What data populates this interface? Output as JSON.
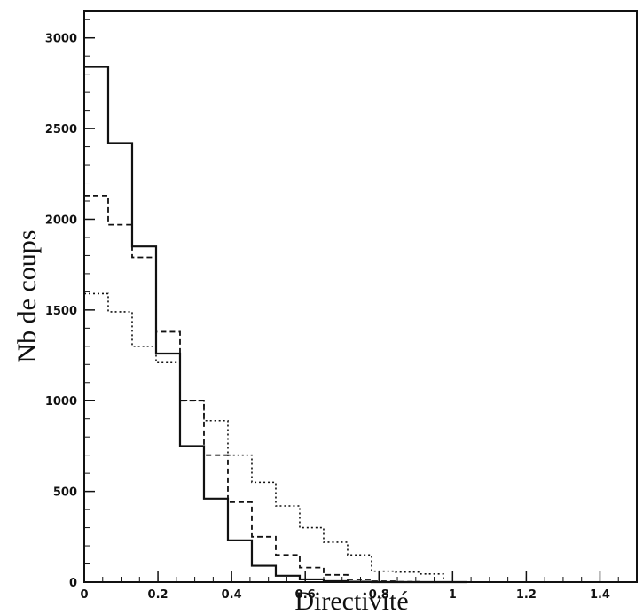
{
  "chart_data": {
    "type": "histogram",
    "xlabel": "Directivité",
    "ylabel": "Nb de coups",
    "xlim": [
      0,
      1.5
    ],
    "ylim": [
      0,
      3150
    ],
    "xticks": [
      {
        "value": 0,
        "label": "0"
      },
      {
        "value": 0.2,
        "label": "0.2"
      },
      {
        "value": 0.4,
        "label": "0.4"
      },
      {
        "value": 0.6,
        "label": "0.6"
      },
      {
        "value": 0.8,
        "label": "0.8"
      },
      {
        "value": 1.0,
        "label": "1"
      },
      {
        "value": 1.2,
        "label": "1.2"
      },
      {
        "value": 1.4,
        "label": "1.4"
      }
    ],
    "yticks": [
      {
        "value": 0,
        "label": "0"
      },
      {
        "value": 500,
        "label": "500"
      },
      {
        "value": 1000,
        "label": "1000"
      },
      {
        "value": 1500,
        "label": "1500"
      },
      {
        "value": 2000,
        "label": "2000"
      },
      {
        "value": 2500,
        "label": "2500"
      },
      {
        "value": 3000,
        "label": "3000"
      }
    ],
    "x_minor_step": 0.05,
    "y_minor_step": 100,
    "bin_edges": [
      0.0,
      0.065,
      0.13,
      0.195,
      0.26,
      0.325,
      0.39,
      0.455,
      0.52,
      0.585,
      0.65,
      0.715,
      0.78,
      0.845,
      0.91,
      0.975,
      1.04
    ],
    "series": [
      {
        "style": "solid",
        "values": [
          2840,
          2420,
          1850,
          1260,
          750,
          460,
          230,
          90,
          35,
          15,
          5,
          2,
          0,
          0,
          0,
          0
        ]
      },
      {
        "style": "dashed",
        "values": [
          2130,
          1970,
          1790,
          1380,
          1000,
          700,
          440,
          250,
          150,
          80,
          40,
          15,
          5,
          2,
          0,
          0
        ]
      },
      {
        "style": "dotted",
        "values": [
          1590,
          1490,
          1300,
          1210,
          1000,
          890,
          700,
          550,
          420,
          300,
          220,
          150,
          60,
          55,
          45,
          0
        ]
      }
    ]
  }
}
